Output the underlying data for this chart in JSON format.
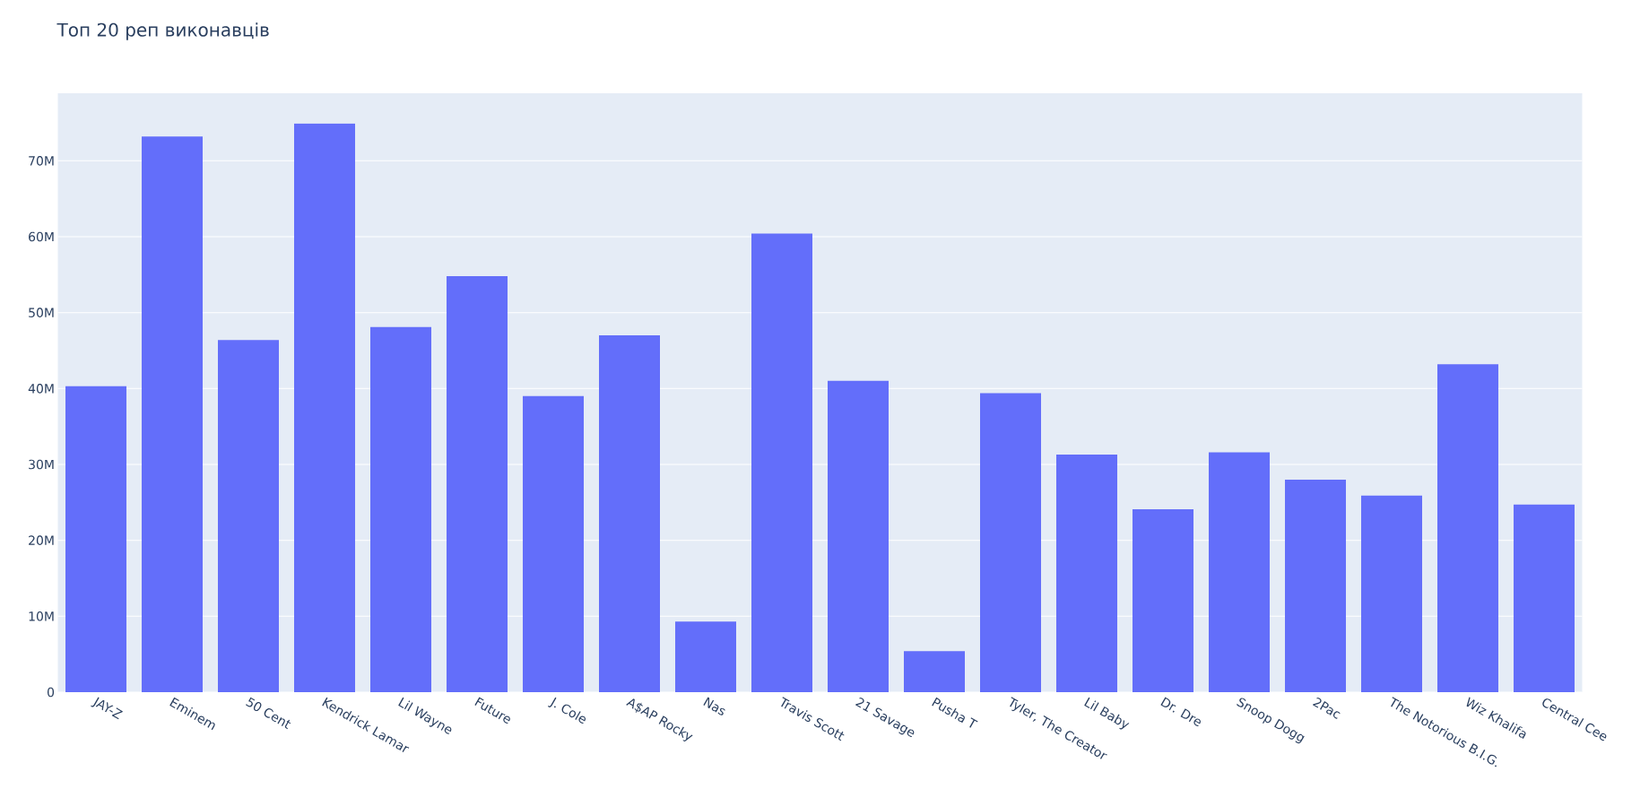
{
  "chart_data": {
    "type": "bar",
    "title": "Топ 20 реп виконавців",
    "categories": [
      "JAY-Z",
      "Eminem",
      "50 Cent",
      "Kendrick Lamar",
      "Lil Wayne",
      "Future",
      "J. Cole",
      "A$AP Rocky",
      "Nas",
      "Travis Scott",
      "21 Savage",
      "Pusha T",
      "Tyler, The Creator",
      "Lil Baby",
      "Dr. Dre",
      "Snoop Dogg",
      "2Pac",
      "The Notorious B.I.G.",
      "Wiz Khalifa",
      "Central Cee"
    ],
    "values": [
      40300000,
      73200000,
      46400000,
      74900000,
      48100000,
      54800000,
      39000000,
      47000000,
      9300000,
      60400000,
      41000000,
      5400000,
      39400000,
      31300000,
      24100000,
      31600000,
      28000000,
      25900000,
      43200000,
      24700000
    ],
    "color": "#636efa",
    "ylim": [
      0,
      78900000
    ],
    "yticks": [
      0,
      {
        "value": 10000000,
        "label": "10M"
      },
      {
        "value": 20000000,
        "label": "20M"
      },
      {
        "value": 30000000,
        "label": "30M"
      },
      {
        "value": 40000000,
        "label": "40M"
      },
      {
        "value": 50000000,
        "label": "50M"
      },
      {
        "value": 60000000,
        "label": "60M"
      },
      {
        "value": 70000000,
        "label": "70M"
      }
    ],
    "grid": "y"
  }
}
